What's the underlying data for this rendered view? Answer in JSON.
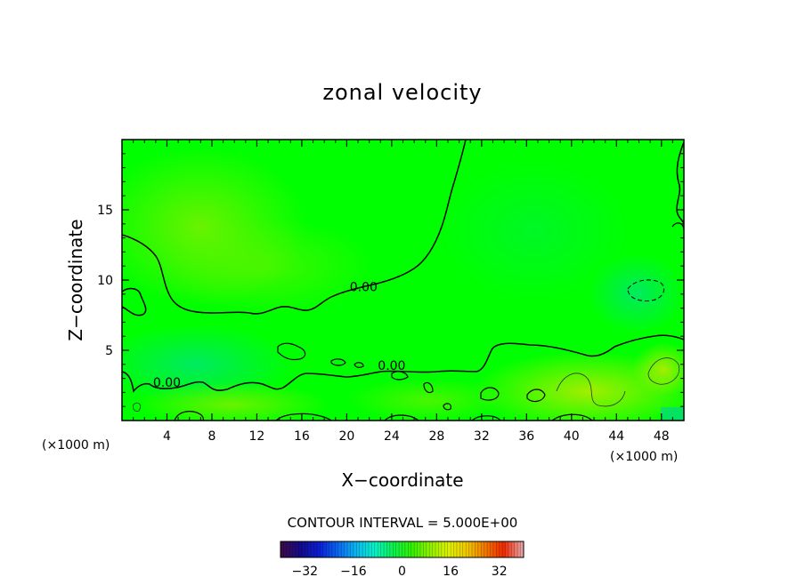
{
  "chart_data": {
    "type": "heatmap",
    "title": "zonal velocity",
    "xlabel": "X−coordinate",
    "ylabel": "Z−coordinate",
    "x_unit": "(×1000 m)",
    "x_unit_right": "(×1000 m)",
    "xlim": [
      0,
      50
    ],
    "ylim": [
      0,
      20
    ],
    "x_ticks": [
      4,
      8,
      12,
      16,
      20,
      24,
      28,
      32,
      36,
      40,
      44,
      48
    ],
    "y_ticks": [
      5,
      10,
      15
    ],
    "contour_labels": [
      {
        "text": "0.00",
        "x": 21.5,
        "y": 9.2
      },
      {
        "text": "0.00",
        "x": 24.0,
        "y": 3.6
      },
      {
        "text": "0.00",
        "x": 4.0,
        "y": 2.4
      }
    ],
    "contour_interval": "CONTOUR INTERVAL = 5.000E+00",
    "colorbar": {
      "range": [
        -40,
        40
      ],
      "ticks": [
        -32,
        -16,
        0,
        16,
        32
      ],
      "tick_labels": [
        "−32",
        "−16",
        "0",
        "16",
        "32"
      ],
      "colors": [
        "#3a0a4a",
        "#140a8a",
        "#0a1ed2",
        "#0a64f0",
        "#0ab4f0",
        "#0af0c8",
        "#0af050",
        "#30f000",
        "#8cf000",
        "#dcf000",
        "#f0c800",
        "#f07800",
        "#f02800",
        "#e6a0a0"
      ]
    },
    "background_color": "#00ff00"
  }
}
